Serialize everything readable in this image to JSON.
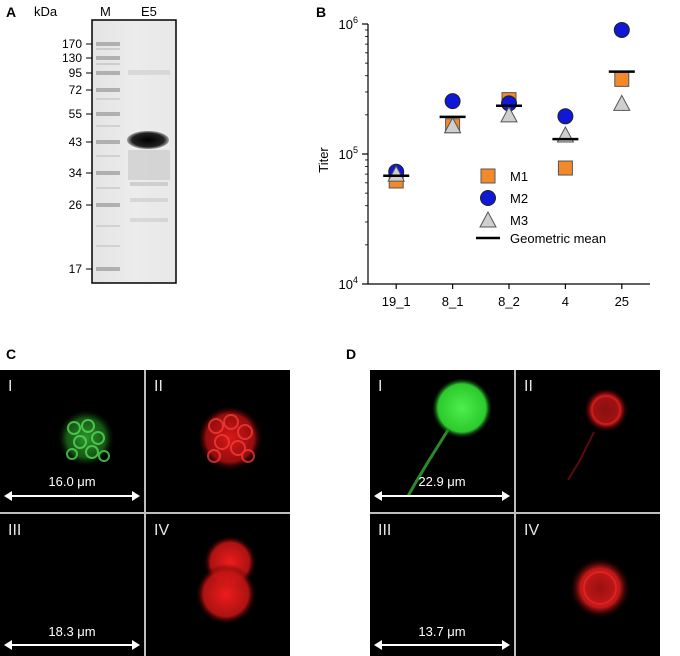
{
  "panels": {
    "a": "A",
    "b": "B",
    "c": "C",
    "d": "D"
  },
  "gel": {
    "unit_label": "kDa",
    "lane_labels": [
      "M",
      "E5"
    ],
    "markers": [
      "170",
      "130",
      "95",
      "72",
      "55",
      "43",
      "34",
      "26",
      "17"
    ]
  },
  "chart_data": {
    "type": "scatter",
    "ylabel": "Titer",
    "yscale": "log",
    "ylim": [
      10000,
      1000000
    ],
    "y_ticks": [
      {
        "base": "10",
        "exp": "4",
        "value": 10000
      },
      {
        "base": "10",
        "exp": "5",
        "value": 100000
      },
      {
        "base": "10",
        "exp": "6",
        "value": 1000000
      }
    ],
    "categories": [
      "19_1",
      "8_1",
      "8_2",
      "4",
      "25"
    ],
    "series": [
      {
        "name": "M1",
        "marker": "square",
        "color": "#f28a2b",
        "values": [
          62000,
          165000,
          262000,
          78000,
          375000
        ]
      },
      {
        "name": "M2",
        "marker": "circle",
        "color": "#1018d8",
        "values": [
          73000,
          255000,
          245000,
          195000,
          900000
        ]
      },
      {
        "name": "M3",
        "marker": "triangle",
        "color": "#cfcfcf",
        "values": [
          70000,
          165000,
          200000,
          140000,
          245000
        ]
      }
    ],
    "geometric_mean": {
      "name": "Geometric mean",
      "values": [
        68000,
        193000,
        235000,
        130000,
        430000
      ]
    },
    "legend_position": "center-right"
  },
  "micro_c": {
    "numerals": [
      "I",
      "II",
      "III",
      "IV"
    ],
    "scale_top": "16.0 μm",
    "scale_bottom": "18.3 μm"
  },
  "micro_d": {
    "numerals": [
      "I",
      "II",
      "III",
      "IV"
    ],
    "scale_top": "22.9 μm",
    "scale_bottom": "13.7 μm"
  },
  "colors": {
    "green": "#3ad43a",
    "red": "#e01818",
    "orange": "#f28a2b",
    "blue": "#1018d8"
  }
}
